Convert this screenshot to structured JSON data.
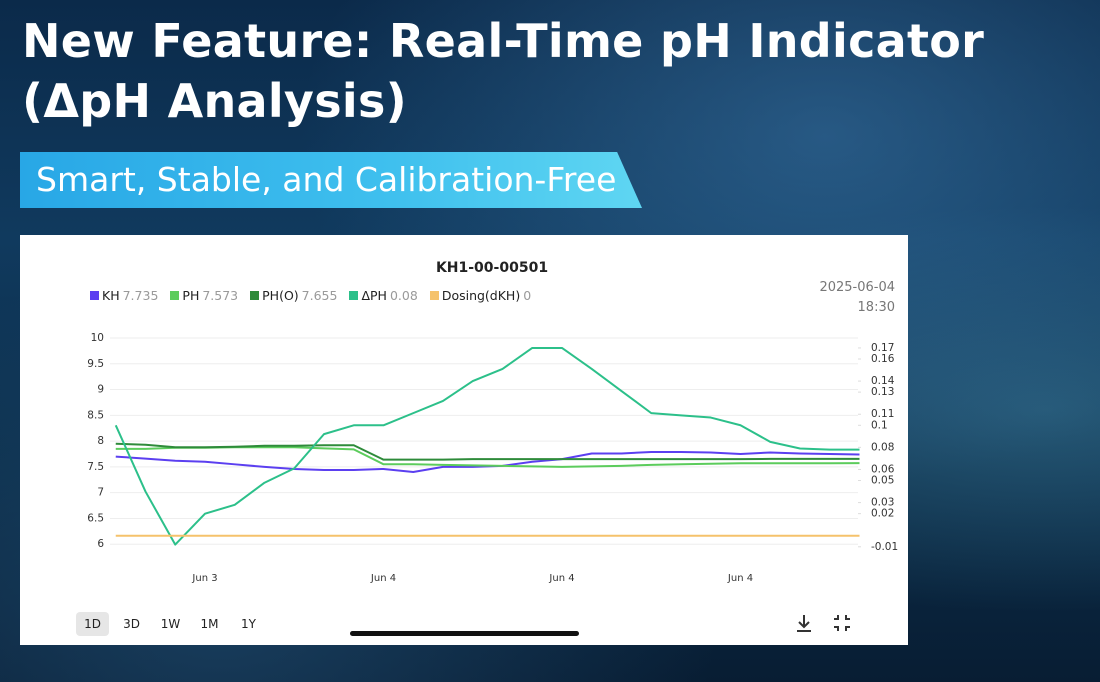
{
  "header": {
    "title_line1": "New Feature: Real-Time pH Indicator",
    "title_line2": "(ΔpH Analysis)",
    "banner": "Smart, Stable, and Calibration-Free"
  },
  "chart_data": {
    "type": "line",
    "title": "KH1-00-00501",
    "timestamp_date": "2025-06-04",
    "timestamp_time": "18:30",
    "categories": [
      null,
      null,
      null,
      "Jun 3",
      null,
      null,
      null,
      null,
      null,
      "Jun 4",
      null,
      null,
      null,
      null,
      null,
      "Jun 4",
      null,
      null,
      null,
      null,
      null,
      "Jun 4",
      null,
      null,
      null,
      null
    ],
    "series": [
      {
        "name": "KH",
        "color": "#5b3ff0",
        "legend_value": 7.735,
        "axis": "y",
        "values": [
          7.7,
          7.66,
          7.62,
          7.6,
          7.55,
          7.5,
          7.46,
          7.44,
          7.44,
          7.46,
          7.4,
          7.5,
          7.5,
          7.52,
          7.6,
          7.65,
          7.76,
          7.76,
          7.79,
          7.79,
          7.78,
          7.75,
          7.78,
          7.76,
          7.75,
          7.74
        ]
      },
      {
        "name": "PH",
        "color": "#5ccc5c",
        "legend_value": 7.573,
        "axis": "y",
        "values": [
          7.85,
          7.85,
          7.87,
          7.87,
          7.88,
          7.88,
          7.88,
          7.86,
          7.84,
          7.55,
          7.55,
          7.54,
          7.53,
          7.52,
          7.51,
          7.5,
          7.51,
          7.52,
          7.54,
          7.55,
          7.56,
          7.57,
          7.57,
          7.57,
          7.57,
          7.573
        ]
      },
      {
        "name": "PH(O)",
        "color": "#2e8b3a",
        "legend_value": 7.655,
        "axis": "y",
        "values": [
          7.95,
          7.93,
          7.88,
          7.88,
          7.89,
          7.91,
          7.91,
          7.92,
          7.92,
          7.64,
          7.64,
          7.64,
          7.65,
          7.65,
          7.65,
          7.65,
          7.65,
          7.65,
          7.65,
          7.65,
          7.65,
          7.65,
          7.655,
          7.655,
          7.655,
          7.655
        ]
      },
      {
        "name": "ΔPH",
        "color": "#2cc08a",
        "legend_value": 0.08,
        "axis": "y2",
        "values": [
          0.1,
          0.04,
          -0.008,
          0.02,
          0.028,
          0.048,
          0.061,
          0.092,
          0.1,
          0.1,
          0.111,
          0.122,
          0.14,
          0.151,
          0.17,
          0.17,
          0.151,
          0.131,
          0.111,
          0.109,
          0.107,
          0.1,
          0.085,
          0.079,
          0.078,
          0.078
        ]
      },
      {
        "name": "Dosing(dKH)",
        "color": "#f5c26b",
        "legend_value": 0,
        "axis": "y2",
        "values": [
          0,
          0,
          0,
          0,
          0,
          0,
          0,
          0,
          0,
          0,
          0,
          0,
          0,
          0,
          0,
          0,
          0,
          0,
          0,
          0,
          0,
          0,
          0,
          0,
          0,
          0
        ]
      }
    ],
    "ylim": [
      5.5,
      10
    ],
    "yticks": [
      6,
      6.5,
      7,
      7.5,
      8,
      8.5,
      9,
      9.5,
      10
    ],
    "y2lim": [
      -0.031,
      0.179
    ],
    "y2ticks": [
      -0.01,
      0.02,
      0.03,
      0.05,
      0.06,
      0.08,
      0.1,
      0.11,
      0.13,
      0.14,
      0.16,
      0.17
    ],
    "grid": true
  },
  "controls": {
    "ranges": [
      "1D",
      "3D",
      "1W",
      "1M",
      "1Y"
    ],
    "selected": 0
  }
}
